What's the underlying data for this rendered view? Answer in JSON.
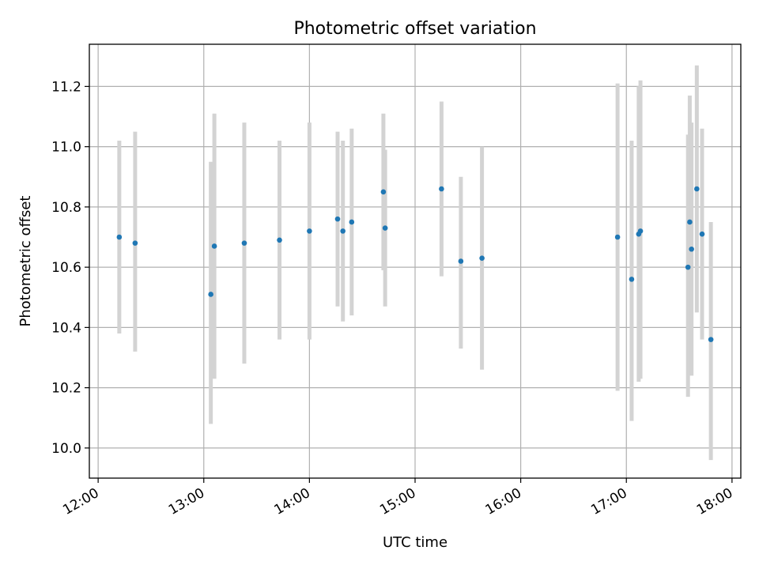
{
  "chart_data": {
    "type": "scatter",
    "title": "Photometric offset variation",
    "xlabel": "UTC time",
    "ylabel": "Photometric offset",
    "xlim": [
      "11:55",
      "18:05"
    ],
    "ylim": [
      9.9,
      11.34
    ],
    "x_ticks": [
      "12:00",
      "13:00",
      "14:00",
      "15:00",
      "16:00",
      "17:00",
      "18:00"
    ],
    "y_ticks": [
      "10.0",
      "10.2",
      "10.4",
      "10.6",
      "10.8",
      "11.0",
      "11.2"
    ],
    "grid": true,
    "colors": {
      "point": "#1f77b4",
      "errorbar": "#d3d3d3",
      "grid": "#b0b0b0"
    },
    "points": [
      {
        "x": "12:12",
        "y": 10.7,
        "ylo": 10.38,
        "yhi": 11.02
      },
      {
        "x": "12:21",
        "y": 10.68,
        "ylo": 10.32,
        "yhi": 11.05
      },
      {
        "x": "13:04",
        "y": 10.51,
        "ylo": 10.08,
        "yhi": 10.95
      },
      {
        "x": "13:06",
        "y": 10.67,
        "ylo": 10.23,
        "yhi": 11.11
      },
      {
        "x": "13:23",
        "y": 10.68,
        "ylo": 10.28,
        "yhi": 11.08
      },
      {
        "x": "13:43",
        "y": 10.69,
        "ylo": 10.36,
        "yhi": 11.02
      },
      {
        "x": "14:00",
        "y": 10.72,
        "ylo": 10.36,
        "yhi": 11.08
      },
      {
        "x": "14:16",
        "y": 10.76,
        "ylo": 10.47,
        "yhi": 11.05
      },
      {
        "x": "14:19",
        "y": 10.72,
        "ylo": 10.42,
        "yhi": 11.02
      },
      {
        "x": "14:24",
        "y": 10.75,
        "ylo": 10.44,
        "yhi": 11.06
      },
      {
        "x": "14:42",
        "y": 10.85,
        "ylo": 10.59,
        "yhi": 11.11
      },
      {
        "x": "14:43",
        "y": 10.73,
        "ylo": 10.47,
        "yhi": 10.99
      },
      {
        "x": "15:15",
        "y": 10.86,
        "ylo": 10.57,
        "yhi": 11.15
      },
      {
        "x": "15:26",
        "y": 10.62,
        "ylo": 10.33,
        "yhi": 10.9
      },
      {
        "x": "15:38",
        "y": 10.63,
        "ylo": 10.26,
        "yhi": 11.0
      },
      {
        "x": "16:55",
        "y": 10.7,
        "ylo": 10.19,
        "yhi": 11.21
      },
      {
        "x": "17:03",
        "y": 10.56,
        "ylo": 10.09,
        "yhi": 11.02
      },
      {
        "x": "17:07",
        "y": 10.71,
        "ylo": 10.22,
        "yhi": 11.2
      },
      {
        "x": "17:08",
        "y": 10.72,
        "ylo": 10.23,
        "yhi": 11.22
      },
      {
        "x": "17:35",
        "y": 10.6,
        "ylo": 10.17,
        "yhi": 11.04
      },
      {
        "x": "17:36",
        "y": 10.75,
        "ylo": 10.32,
        "yhi": 11.17
      },
      {
        "x": "17:37",
        "y": 10.66,
        "ylo": 10.24,
        "yhi": 11.08
      },
      {
        "x": "17:40",
        "y": 10.86,
        "ylo": 10.45,
        "yhi": 11.27
      },
      {
        "x": "17:43",
        "y": 10.71,
        "ylo": 10.36,
        "yhi": 11.06
      },
      {
        "x": "17:48",
        "y": 10.36,
        "ylo": 9.96,
        "yhi": 10.75
      }
    ]
  }
}
